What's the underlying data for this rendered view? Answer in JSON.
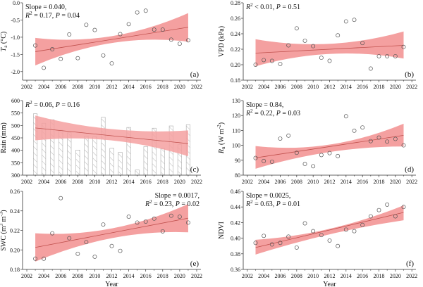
{
  "chart_data": [
    {
      "id": "a",
      "type": "scatter",
      "panel_label": "(a)",
      "ylabel": "Ta (°C)",
      "ylabel_main": "T",
      "ylabel_sub": "a",
      "ylabel_rest": " (°C)",
      "xlabel": "",
      "annotation": [
        "Slope = 0.040,",
        "R2 = 0.17, P = 0.04"
      ],
      "ann_pos": "top-left",
      "xlim": [
        2001.5,
        2022.5
      ],
      "ylim": [
        -2.25,
        0.0
      ],
      "xticks": [
        2002,
        2004,
        2006,
        2008,
        2010,
        2012,
        2014,
        2016,
        2018,
        2020,
        2022
      ],
      "yticks": [
        -2.0,
        -1.5,
        -1.0,
        -0.5,
        0.0
      ],
      "ytick_labels": [
        "-2.0",
        "-1.5",
        "-1.0",
        "-0.5",
        "0.0"
      ],
      "x": [
        2003,
        2004,
        2005,
        2006,
        2007,
        2008,
        2009,
        2010,
        2011,
        2012,
        2013,
        2014,
        2015,
        2016,
        2017,
        2018,
        2019,
        2020,
        2021
      ],
      "y": [
        -1.24,
        -1.89,
        -1.35,
        -1.63,
        -0.92,
        -1.61,
        -0.64,
        -0.79,
        -1.53,
        -1.76,
        -0.91,
        -0.62,
        -0.28,
        -0.23,
        -0.78,
        -0.78,
        -1.07,
        -1.19,
        -1.09
      ],
      "fit": {
        "x0": 2003,
        "y0": -1.42,
        "x1": 2021,
        "y1": -0.71
      },
      "ci_upper": [
        [
          2003,
          -1.02
        ],
        [
          2012,
          -0.97
        ],
        [
          2021,
          -0.3
        ]
      ],
      "ci_lower": [
        [
          2003,
          -1.82
        ],
        [
          2012,
          -1.17
        ],
        [
          2021,
          -1.13
        ]
      ]
    },
    {
      "id": "b",
      "type": "scatter",
      "panel_label": "(b)",
      "ylabel": "VPD (kPa)",
      "xlabel": "",
      "annotation": [
        "R2 < 0.01, P = 0.51"
      ],
      "ann_pos": "top-left",
      "xlim": [
        2001.5,
        2022.5
      ],
      "ylim": [
        0.18,
        0.28
      ],
      "xticks": [
        2002,
        2004,
        2006,
        2008,
        2010,
        2012,
        2014,
        2016,
        2018,
        2020,
        2022
      ],
      "yticks": [
        0.18,
        0.2,
        0.22,
        0.24,
        0.26,
        0.28
      ],
      "ytick_labels": [
        "0.18",
        "0.20",
        "0.22",
        "0.24",
        "0.26",
        "0.28"
      ],
      "x": [
        2003,
        2004,
        2005,
        2006,
        2007,
        2008,
        2009,
        2010,
        2011,
        2012,
        2013,
        2014,
        2015,
        2016,
        2017,
        2018,
        2019,
        2020,
        2021
      ],
      "y": [
        0.2,
        0.206,
        0.205,
        0.201,
        0.225,
        0.247,
        0.231,
        0.224,
        0.209,
        0.205,
        0.238,
        0.256,
        0.258,
        0.228,
        0.195,
        0.211,
        0.211,
        0.211,
        0.223
      ],
      "fit": {
        "x0": 2003,
        "y0": 0.215,
        "x1": 2021,
        "y1": 0.225
      },
      "ci_upper": [
        [
          2003,
          0.233
        ],
        [
          2012,
          0.227
        ],
        [
          2021,
          0.243
        ]
      ],
      "ci_lower": [
        [
          2003,
          0.198
        ],
        [
          2012,
          0.214
        ],
        [
          2021,
          0.208
        ]
      ]
    },
    {
      "id": "c",
      "type": "bar",
      "panel_label": "(c)",
      "ylabel": "Rain (mm)",
      "xlabel": "",
      "annotation": [
        "R2 = 0.06, P = 0.16"
      ],
      "ann_pos": "top-left",
      "xlim": [
        2001.5,
        2022.5
      ],
      "ylim": [
        300,
        600
      ],
      "xticks": [
        2002,
        2004,
        2006,
        2008,
        2010,
        2012,
        2014,
        2016,
        2018,
        2020,
        2022
      ],
      "yticks": [
        300,
        350,
        400,
        450,
        500,
        550,
        600
      ],
      "ytick_labels": [
        "300",
        "350",
        "400",
        "450",
        "500",
        "550",
        "600"
      ],
      "x": [
        2003,
        2004,
        2005,
        2006,
        2007,
        2008,
        2009,
        2010,
        2011,
        2012,
        2013,
        2014,
        2015,
        2016,
        2017,
        2018,
        2019,
        2020,
        2021
      ],
      "y": [
        547,
        509,
        523,
        481,
        471,
        401,
        457,
        455,
        533,
        408,
        392,
        492,
        321,
        415,
        489,
        408,
        498,
        423,
        503
      ],
      "fit": {
        "x0": 2003,
        "y0": 490,
        "x1": 2021,
        "y1": 427
      },
      "ci_upper": [
        [
          2003,
          540
        ],
        [
          2012,
          485
        ],
        [
          2021,
          480
        ]
      ],
      "ci_lower": [
        [
          2003,
          440
        ],
        [
          2012,
          440
        ],
        [
          2021,
          376
        ]
      ]
    },
    {
      "id": "d",
      "type": "scatter",
      "panel_label": "(d)",
      "ylabel": "Rn (W m-2)",
      "ylabel_main": "R",
      "ylabel_sub": "n",
      "ylabel_rest": " (W m",
      "xlabel": "",
      "annotation": [
        "Slope = 0.84,",
        "R2 = 0.22, P = 0.03"
      ],
      "ann_pos": "top-left",
      "xlim": [
        2001.5,
        2022.5
      ],
      "ylim": [
        80,
        130
      ],
      "xticks": [
        2002,
        2004,
        2006,
        2008,
        2010,
        2012,
        2014,
        2016,
        2018,
        2020,
        2022
      ],
      "yticks": [
        80,
        90,
        100,
        110,
        120,
        130
      ],
      "ytick_labels": [
        "80",
        "90",
        "100",
        "110",
        "120",
        "130"
      ],
      "x": [
        2003,
        2004,
        2005,
        2006,
        2007,
        2008,
        2009,
        2010,
        2011,
        2012,
        2013,
        2014,
        2015,
        2016,
        2017,
        2018,
        2019,
        2020,
        2021
      ],
      "y": [
        91.5,
        89.5,
        89,
        104.5,
        106.5,
        95,
        87.5,
        86,
        93.5,
        94.8,
        92.8,
        119.5,
        109.8,
        112,
        102.8,
        105.2,
        102.5,
        104.3,
        100
      ],
      "fit": {
        "x0": 2003,
        "y0": 91.6,
        "x1": 2021,
        "y1": 106.7
      },
      "ci_upper": [
        [
          2003,
          99.5
        ],
        [
          2012,
          100.5
        ],
        [
          2021,
          114.5
        ]
      ],
      "ci_lower": [
        [
          2003,
          84.3
        ],
        [
          2012,
          95.5
        ],
        [
          2021,
          99.2
        ]
      ]
    },
    {
      "id": "e",
      "type": "scatter",
      "panel_label": "(e)",
      "ylabel": "SWC (m3 m-3)",
      "xlabel": "Year",
      "annotation": [
        "Slope = 0.0017,",
        "R2 = 0.23, P = 0.02"
      ],
      "ann_pos": "top-right",
      "xlim": [
        2001.5,
        2022.5
      ],
      "ylim": [
        0.18,
        0.26
      ],
      "xticks": [
        2002,
        2004,
        2006,
        2008,
        2010,
        2012,
        2014,
        2016,
        2018,
        2020,
        2022
      ],
      "yticks": [
        0.18,
        0.2,
        0.22,
        0.24,
        0.26
      ],
      "ytick_labels": [
        "0.18",
        "0.20",
        "0.22",
        "0.24",
        "0.26"
      ],
      "x": [
        2003,
        2004,
        2005,
        2006,
        2007,
        2008,
        2009,
        2010,
        2011,
        2012,
        2013,
        2014,
        2015,
        2016,
        2017,
        2018,
        2019,
        2020,
        2021
      ],
      "y": [
        0.191,
        0.191,
        0.217,
        0.253,
        0.212,
        0.196,
        0.208,
        0.193,
        0.226,
        0.204,
        0.199,
        0.234,
        0.228,
        0.229,
        0.232,
        0.219,
        0.235,
        0.234,
        0.228
      ],
      "fit": {
        "x0": 2003,
        "y0": 0.2025,
        "x1": 2021,
        "y1": 0.2325
      },
      "ci_upper": [
        [
          2003,
          0.217
        ],
        [
          2012,
          0.222
        ],
        [
          2021,
          0.247
        ]
      ],
      "ci_lower": [
        [
          2003,
          0.188
        ],
        [
          2012,
          0.212
        ],
        [
          2021,
          0.218
        ]
      ]
    },
    {
      "id": "f",
      "type": "scatter",
      "panel_label": "(f)",
      "ylabel": "NDVI",
      "xlabel": "Year",
      "annotation": [
        "Slope = 0.0025,",
        "R2 = 0.63, P = 0.01"
      ],
      "ann_pos": "top-left",
      "xlim": [
        2001.5,
        2022.5
      ],
      "ylim": [
        0.36,
        0.46
      ],
      "xticks": [
        2002,
        2004,
        2006,
        2008,
        2010,
        2012,
        2014,
        2016,
        2018,
        2020,
        2022
      ],
      "yticks": [
        0.36,
        0.38,
        0.4,
        0.42,
        0.44,
        0.46
      ],
      "ytick_labels": [
        "0.36",
        "0.38",
        "0.40",
        "0.42",
        "0.44",
        "0.46"
      ],
      "x": [
        2003,
        2004,
        2005,
        2006,
        2007,
        2008,
        2009,
        2010,
        2011,
        2012,
        2013,
        2014,
        2015,
        2016,
        2017,
        2018,
        2019,
        2020,
        2021
      ],
      "y": [
        0.394,
        0.403,
        0.392,
        0.394,
        0.402,
        0.388,
        0.419,
        0.409,
        0.404,
        0.397,
        0.39,
        0.411,
        0.409,
        0.417,
        0.428,
        0.436,
        0.443,
        0.428,
        0.44
      ],
      "fit": {
        "x0": 2003,
        "y0": 0.388,
        "x1": 2021,
        "y1": 0.433
      },
      "ci_upper": [
        [
          2003,
          0.398
        ],
        [
          2012,
          0.412
        ],
        [
          2021,
          0.442
        ]
      ],
      "ci_lower": [
        [
          2003,
          0.379
        ],
        [
          2012,
          0.405
        ],
        [
          2021,
          0.423
        ]
      ]
    }
  ],
  "colors": {
    "band": "#f4a0a0",
    "line": "#c0504d",
    "marker": "#555555",
    "bar_hatch": "#999999"
  }
}
